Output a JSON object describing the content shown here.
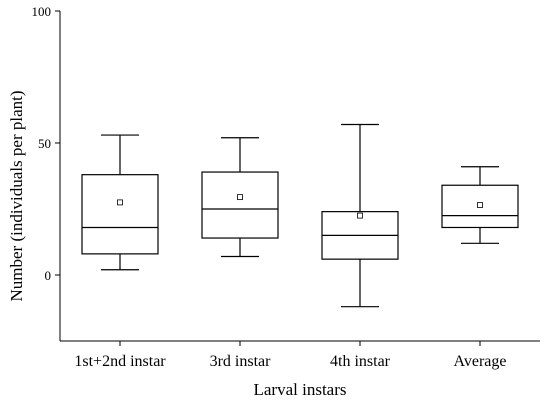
{
  "chart_data": {
    "type": "box",
    "xlabel": "Larval instars",
    "ylabel": "Number (individuals per plant)",
    "ylim": [
      -25,
      100
    ],
    "yticks": [
      0,
      50,
      100
    ],
    "categories": [
      "1st+2nd instar",
      "3rd instar",
      "4th instar",
      "Average"
    ],
    "boxes": [
      {
        "category": "1st+2nd instar",
        "whisker_low": 2,
        "q1": 8,
        "median": 18,
        "q3": 38,
        "whisker_high": 53,
        "mean": 27.5
      },
      {
        "category": "3rd instar",
        "whisker_low": 7,
        "q1": 14,
        "median": 25,
        "q3": 39,
        "whisker_high": 52,
        "mean": 29.5
      },
      {
        "category": "4th instar",
        "whisker_low": -12,
        "q1": 6,
        "median": 15,
        "q3": 24,
        "whisker_high": 57,
        "mean": 22.5
      },
      {
        "category": "Average",
        "whisker_low": 12,
        "q1": 18,
        "median": 22.5,
        "q3": 34,
        "whisker_high": 41,
        "mean": 26.5
      }
    ],
    "grid": false,
    "legend": "none"
  }
}
